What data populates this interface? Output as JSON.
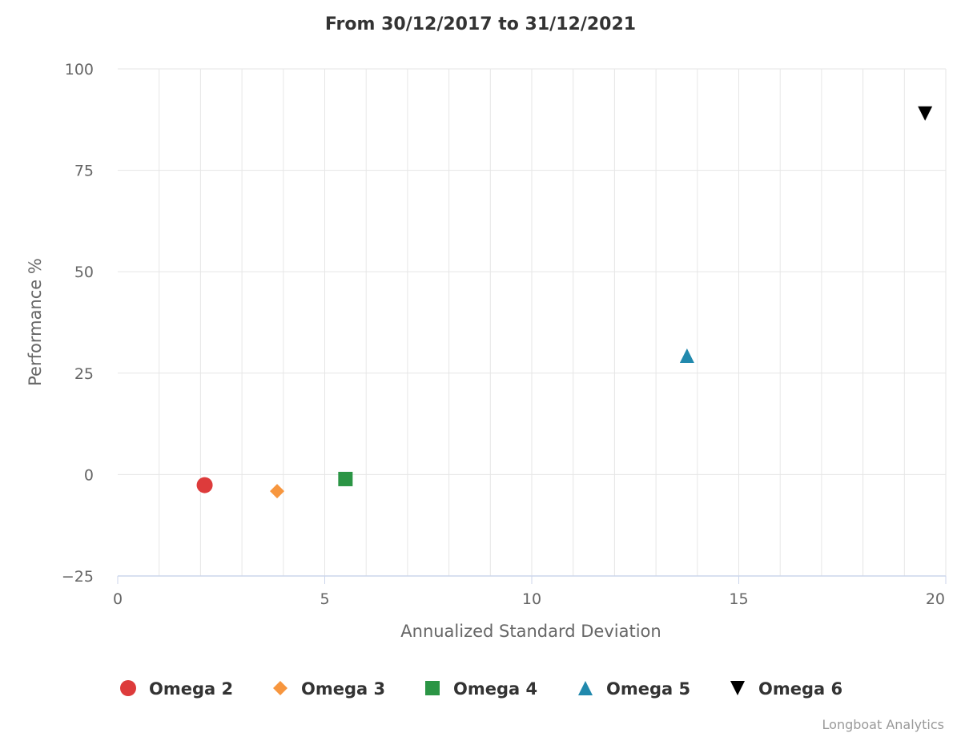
{
  "chart_data": {
    "type": "scatter",
    "title": "From 30/12/2017 to 31/12/2021",
    "xlabel": "Annualized Standard Deviation",
    "ylabel": "Performance %",
    "xlim": [
      0,
      20
    ],
    "ylim": [
      -25,
      100
    ],
    "x_ticks": [
      0,
      5,
      10,
      15,
      20
    ],
    "y_ticks": [
      -25,
      0,
      25,
      50,
      75,
      100
    ],
    "x_ticks_label": [
      "0",
      "5",
      "10",
      "15",
      "20"
    ],
    "y_ticks_label": [
      "−25",
      "0",
      "25",
      "50",
      "75",
      "100"
    ],
    "grid": true,
    "legend_position": "bottom",
    "series": [
      {
        "name": "Omega 2",
        "marker": "circle",
        "color": "#dd3b3b",
        "points": [
          {
            "x": 2.1,
            "y": -2.6
          }
        ]
      },
      {
        "name": "Omega 3",
        "marker": "diamond",
        "color": "#f7963e",
        "points": [
          {
            "x": 3.85,
            "y": -4.1
          }
        ]
      },
      {
        "name": "Omega 4",
        "marker": "square",
        "color": "#2b9545",
        "points": [
          {
            "x": 5.5,
            "y": -1.1
          }
        ]
      },
      {
        "name": "Omega 5",
        "marker": "triangle",
        "color": "#2189ad",
        "points": [
          {
            "x": 13.75,
            "y": 29.3
          }
        ]
      },
      {
        "name": "Omega 6",
        "marker": "triangle-down",
        "color": "#000000",
        "points": [
          {
            "x": 19.5,
            "y": 89.0
          }
        ]
      }
    ]
  },
  "credit": "Longboat Analytics"
}
